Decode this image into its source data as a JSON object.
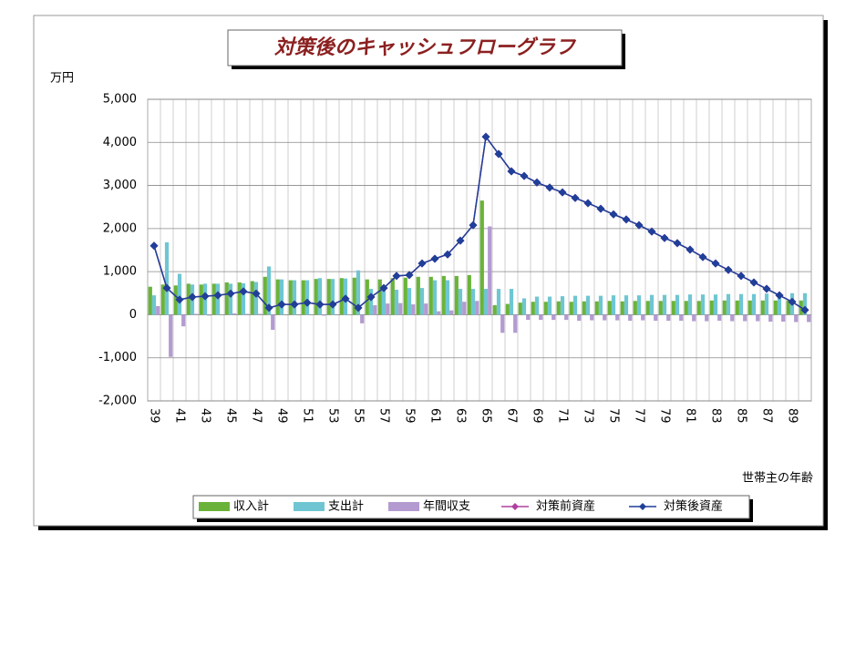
{
  "chart_data": {
    "type": "bar-line",
    "title": "対策後のキャッシュフローグラフ",
    "y_label": "万円",
    "x_label": "世帯主の年齢",
    "categories": [
      39,
      null,
      41,
      null,
      43,
      null,
      45,
      null,
      47,
      null,
      49,
      null,
      51,
      null,
      53,
      null,
      55,
      null,
      57,
      null,
      59,
      null,
      61,
      null,
      63,
      null,
      65,
      null,
      67,
      null,
      69,
      null,
      71,
      null,
      73,
      null,
      75,
      null,
      77,
      null,
      79,
      null,
      81,
      null,
      83,
      null,
      85,
      null,
      87,
      null,
      89,
      null
    ],
    "ylim": [
      -2000,
      5000
    ],
    "yticks": [
      {
        "value": 5000,
        "label": "5,000"
      },
      {
        "value": 4000,
        "label": "4,000"
      },
      {
        "value": 3000,
        "label": "3,000"
      },
      {
        "value": 2000,
        "label": "2,000"
      },
      {
        "value": 1000,
        "label": "1,000"
      },
      0,
      {
        "value": -1000,
        "label": "-1,000"
      },
      {
        "value": -2000,
        "label": "-2,000"
      }
    ],
    "grid": true,
    "series": [
      {
        "name": "収入計",
        "kind": "bar",
        "color": "#6ab33a",
        "values": [
          650,
          700,
          680,
          720,
          700,
          720,
          750,
          750,
          780,
          880,
          820,
          800,
          800,
          830,
          830,
          850,
          860,
          820,
          820,
          850,
          860,
          880,
          880,
          900,
          900,
          920,
          2650,
          220,
          250,
          280,
          300,
          300,
          310,
          300,
          310,
          310,
          320,
          310,
          320,
          320,
          320,
          320,
          320,
          320,
          330,
          330,
          330,
          330,
          330,
          330,
          330,
          330
        ]
      },
      {
        "name": "支出計",
        "kind": "bar",
        "color": "#6fc6d2",
        "values": [
          450,
          1680,
          950,
          700,
          720,
          720,
          720,
          730,
          760,
          1120,
          820,
          800,
          800,
          850,
          830,
          840,
          1030,
          600,
          560,
          580,
          620,
          620,
          800,
          800,
          600,
          600,
          600,
          600,
          600,
          380,
          420,
          420,
          430,
          440,
          440,
          440,
          450,
          450,
          450,
          460,
          460,
          460,
          470,
          470,
          470,
          480,
          480,
          480,
          490,
          490,
          500,
          500
        ]
      },
      {
        "name": "年間収支",
        "kind": "bar",
        "color": "#b39bd1",
        "values": [
          200,
          -980,
          -270,
          20,
          -20,
          0,
          30,
          20,
          20,
          -350,
          0,
          0,
          0,
          -20,
          0,
          10,
          -200,
          220,
          260,
          270,
          240,
          260,
          80,
          100,
          300,
          320,
          2050,
          -420,
          -420,
          -120,
          -120,
          -120,
          -120,
          -140,
          -130,
          -130,
          -130,
          -140,
          -130,
          -140,
          -140,
          -140,
          -150,
          -150,
          -140,
          -150,
          -150,
          -150,
          -160,
          -160,
          -170,
          -170
        ]
      },
      {
        "name": "対策前資産",
        "kind": "line",
        "color": "#b0409f",
        "values": [
          1600,
          620,
          350,
          410,
          430,
          450,
          490,
          540,
          490,
          160,
          240,
          240,
          280,
          240,
          240,
          370,
          160,
          410,
          620,
          900,
          920,
          1190,
          1300,
          1400,
          1720,
          2080,
          4130,
          3730,
          3330,
          3220,
          3070,
          2950,
          2840,
          2710,
          2590,
          2460,
          2330,
          2210,
          2080,
          1930,
          1780,
          1660,
          1510,
          1340,
          1190,
          1040,
          900,
          750,
          600,
          450,
          300,
          110
        ]
      },
      {
        "name": "対策後資産",
        "kind": "line",
        "color": "#1f3f99",
        "values": [
          1600,
          620,
          350,
          410,
          430,
          450,
          490,
          540,
          490,
          160,
          240,
          240,
          280,
          240,
          240,
          370,
          160,
          410,
          620,
          900,
          920,
          1190,
          1300,
          1400,
          1720,
          2080,
          4130,
          3730,
          3330,
          3220,
          3070,
          2950,
          2840,
          2710,
          2590,
          2460,
          2330,
          2210,
          2080,
          1930,
          1780,
          1660,
          1510,
          1340,
          1190,
          1040,
          900,
          750,
          600,
          450,
          300,
          110
        ]
      }
    ]
  }
}
